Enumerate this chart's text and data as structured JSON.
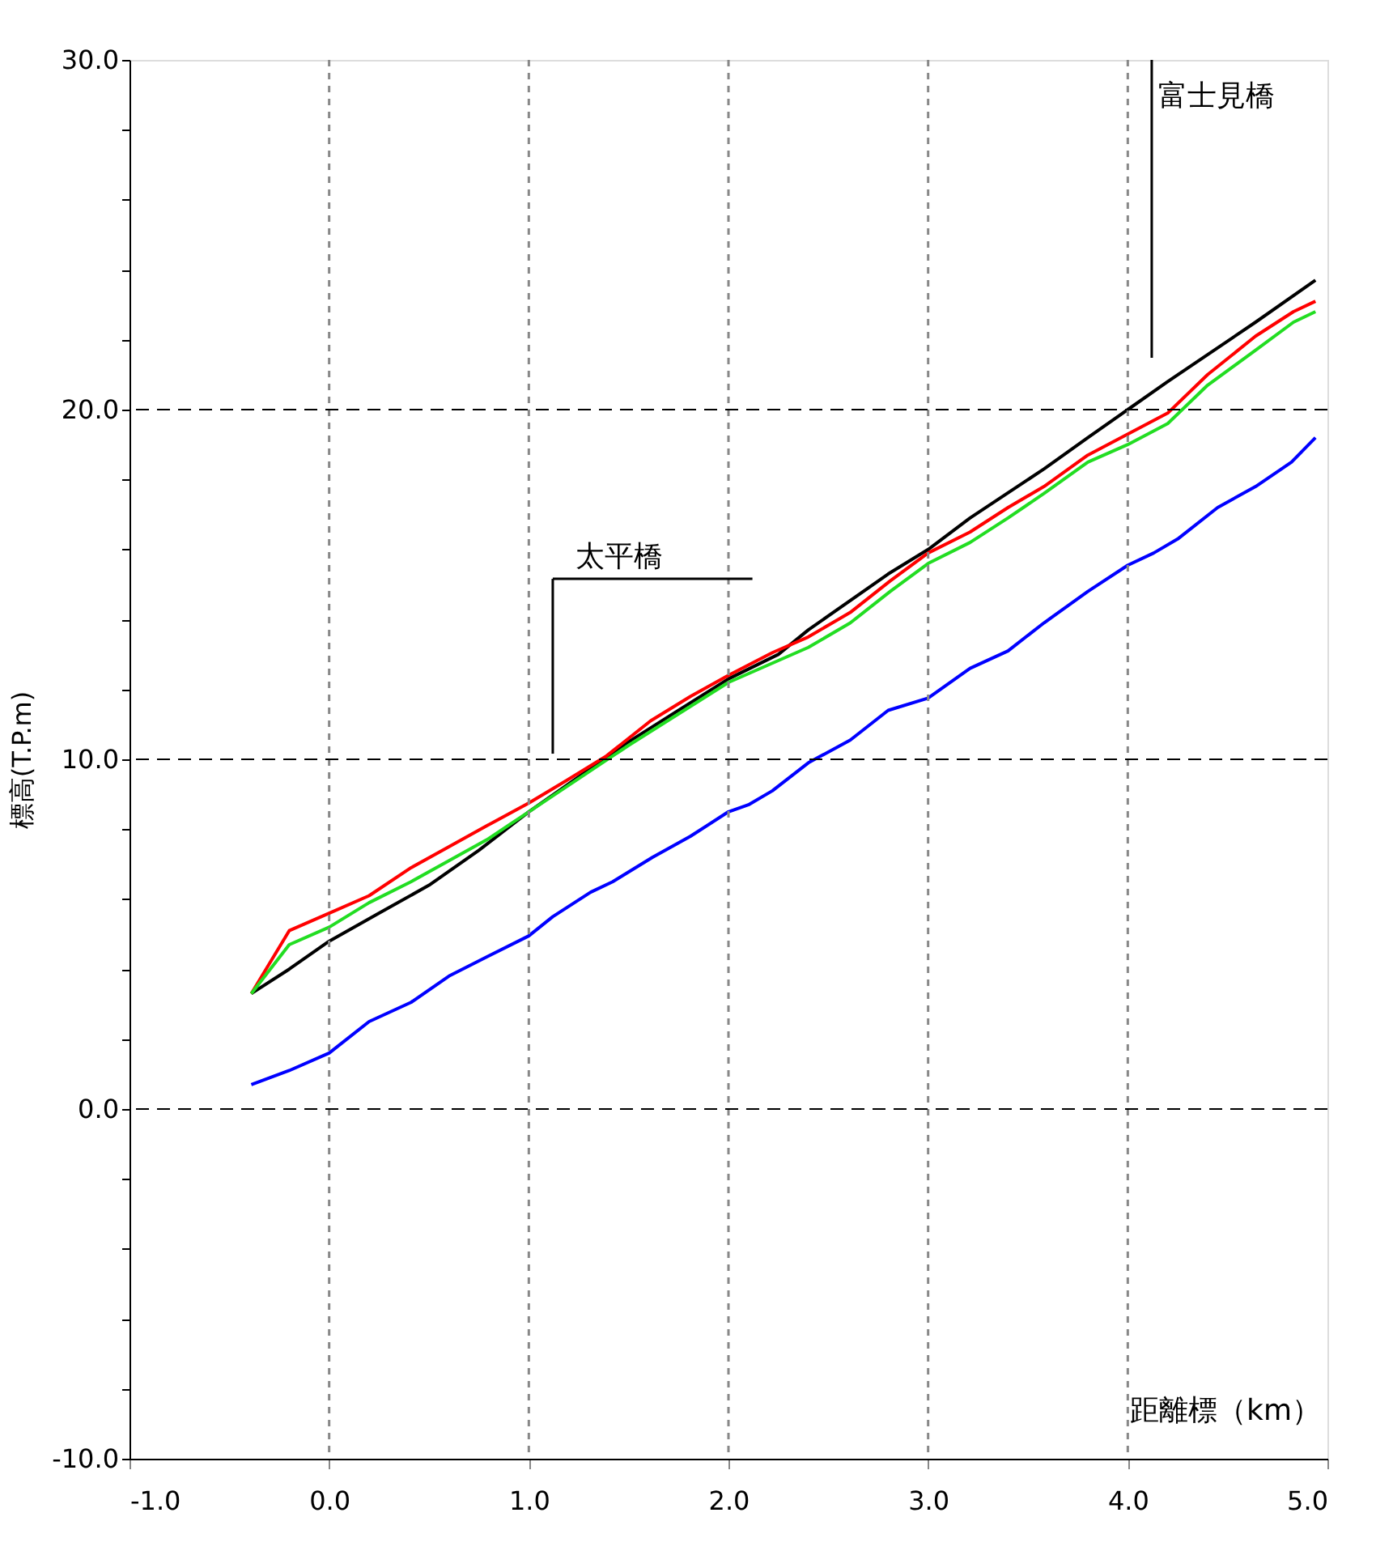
{
  "chart_data": {
    "type": "line",
    "xlabel": "距離標（km）",
    "ylabel": "標高(T.P.m)",
    "xlim": [
      -1.0,
      5.0
    ],
    "ylim": [
      -10.0,
      30.0
    ],
    "xticks": [
      {
        "value": -1,
        "label": "-1.0"
      },
      {
        "value": 0,
        "label": "0.0"
      },
      {
        "value": 1,
        "label": "1.0"
      },
      {
        "value": 2,
        "label": "2.0"
      },
      {
        "value": 3,
        "label": "3.0"
      },
      {
        "value": 4,
        "label": "4.0"
      },
      {
        "value": 5,
        "label": "5.0"
      }
    ],
    "yticks": [
      {
        "value": -10,
        "label": "-10.0"
      },
      {
        "value": -8,
        "label": null
      },
      {
        "value": -6,
        "label": null
      },
      {
        "value": -4,
        "label": null
      },
      {
        "value": -2,
        "label": null
      },
      {
        "value": 0,
        "label": "0.0"
      },
      {
        "value": 2,
        "label": null
      },
      {
        "value": 4,
        "label": null
      },
      {
        "value": 6,
        "label": null
      },
      {
        "value": 8,
        "label": null
      },
      {
        "value": 10,
        "label": "10.0"
      },
      {
        "value": 12,
        "label": null
      },
      {
        "value": 14,
        "label": null
      },
      {
        "value": 16,
        "label": null
      },
      {
        "value": 18,
        "label": null
      },
      {
        "value": 20,
        "label": "20.0"
      },
      {
        "value": 22,
        "label": null
      },
      {
        "value": 24,
        "label": null
      },
      {
        "value": 26,
        "label": null
      },
      {
        "value": 28,
        "label": null
      },
      {
        "value": 30,
        "label": "30.0"
      }
    ],
    "grid": true,
    "marker": "none",
    "line_style": "solid",
    "legend": false,
    "series": [
      {
        "color": "#000000",
        "x": [
          -0.39,
          -0.2,
          0,
          0.25,
          0.5,
          0.75,
          1.0,
          1.25,
          1.5,
          1.75,
          2.0,
          2.25,
          2.4,
          2.8,
          3.0,
          3.21,
          3.58,
          3.8,
          4.0,
          4.2,
          4.64,
          4.94
        ],
        "values": [
          3.3,
          4.0,
          4.8,
          5.6,
          6.4,
          7.4,
          8.5,
          9.5,
          10.5,
          11.4,
          12.3,
          13.0,
          13.7,
          15.3,
          16.0,
          16.9,
          18.3,
          19.2,
          20.0,
          20.8,
          22.5,
          23.7
        ]
      },
      {
        "color": "#ff0000",
        "x": [
          -0.39,
          -0.2,
          0,
          0.2,
          0.41,
          0.6,
          0.79,
          1.0,
          1.19,
          1.39,
          1.61,
          1.81,
          2.0,
          2.22,
          2.4,
          2.61,
          2.81,
          3.0,
          3.21,
          3.4,
          3.58,
          3.8,
          4.0,
          4.2,
          4.4,
          4.64,
          4.83,
          4.94
        ],
        "values": [
          3.3,
          5.1,
          5.6,
          6.1,
          6.9,
          7.5,
          8.1,
          8.75,
          9.4,
          10.1,
          11.1,
          11.8,
          12.4,
          13.05,
          13.5,
          14.2,
          15.1,
          15.9,
          16.5,
          17.2,
          17.8,
          18.7,
          19.3,
          19.9,
          21.0,
          22.1,
          22.8,
          23.1
        ]
      },
      {
        "color": "#22dd22",
        "x": [
          -0.39,
          -0.2,
          0,
          0.2,
          0.41,
          0.6,
          0.79,
          1.0,
          1.5,
          2.0,
          2.4,
          2.61,
          2.81,
          3.0,
          3.21,
          3.4,
          3.58,
          3.8,
          4.0,
          4.2,
          4.4,
          4.64,
          4.83,
          4.94
        ],
        "values": [
          3.3,
          4.7,
          5.2,
          5.9,
          6.5,
          7.1,
          7.7,
          8.5,
          10.4,
          12.2,
          13.2,
          13.9,
          14.8,
          15.6,
          16.2,
          16.9,
          17.6,
          18.5,
          19.0,
          19.6,
          20.7,
          21.7,
          22.5,
          22.8
        ]
      },
      {
        "color": "#0000ff",
        "x": [
          -0.39,
          -0.2,
          0,
          0.2,
          0.41,
          0.6,
          0.79,
          1.0,
          1.12,
          1.31,
          1.42,
          1.62,
          1.81,
          2.0,
          2.1,
          2.22,
          2.4,
          2.61,
          2.8,
          3.0,
          3.21,
          3.4,
          3.58,
          3.8,
          4.0,
          4.13,
          4.25,
          4.45,
          4.64,
          4.82,
          4.94
        ],
        "values": [
          0.7,
          1.1,
          1.6,
          2.5,
          3.05,
          3.8,
          4.35,
          4.95,
          5.5,
          6.2,
          6.5,
          7.2,
          7.8,
          8.5,
          8.7,
          9.1,
          9.9,
          10.55,
          11.4,
          11.75,
          12.6,
          13.1,
          13.9,
          14.8,
          15.55,
          15.9,
          16.3,
          17.2,
          17.8,
          18.5,
          19.2
        ]
      }
    ],
    "ref_lines": [
      {
        "axis": "x",
        "value": 1.12,
        "label": "太平橋"
      },
      {
        "axis": "x",
        "value": 4.12,
        "label": "富士見橋"
      }
    ]
  }
}
